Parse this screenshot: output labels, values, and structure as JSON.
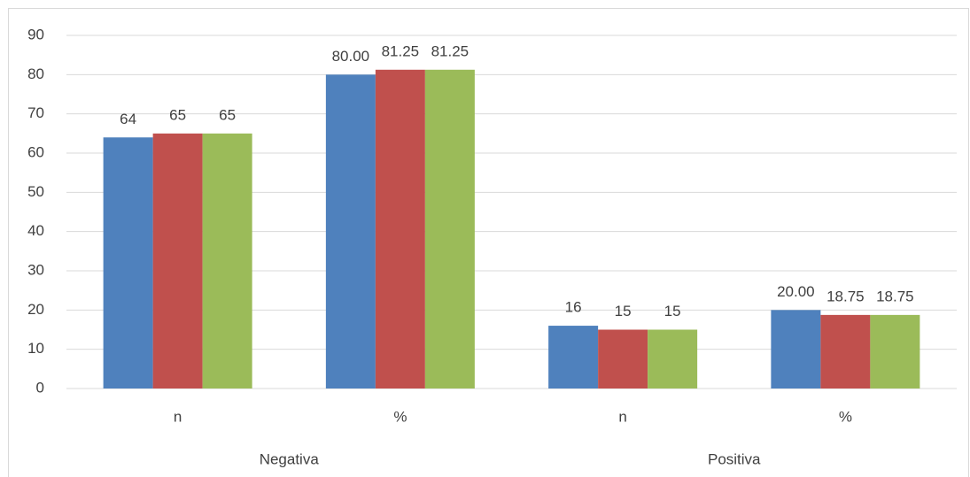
{
  "chart_data": {
    "type": "bar",
    "categories": [
      "n",
      "%",
      "n",
      "%"
    ],
    "groups": [
      "Negativa",
      "Positiva"
    ],
    "series": [
      {
        "color": "#4f81bd",
        "values": [
          64,
          80,
          16,
          20
        ],
        "value_labels": [
          "64",
          "80.00",
          "16",
          "20.00"
        ]
      },
      {
        "color": "#c0504d",
        "values": [
          65,
          81.25,
          15,
          18.75
        ]
      },
      {
        "color": "#9bbb59",
        "values": [
          65,
          81.25,
          15,
          18.75
        ]
      }
    ],
    "ylim": [
      0,
      90
    ],
    "yticks": [
      0,
      10,
      20,
      30,
      40,
      50,
      60,
      70,
      80,
      90
    ],
    "grid": true
  }
}
